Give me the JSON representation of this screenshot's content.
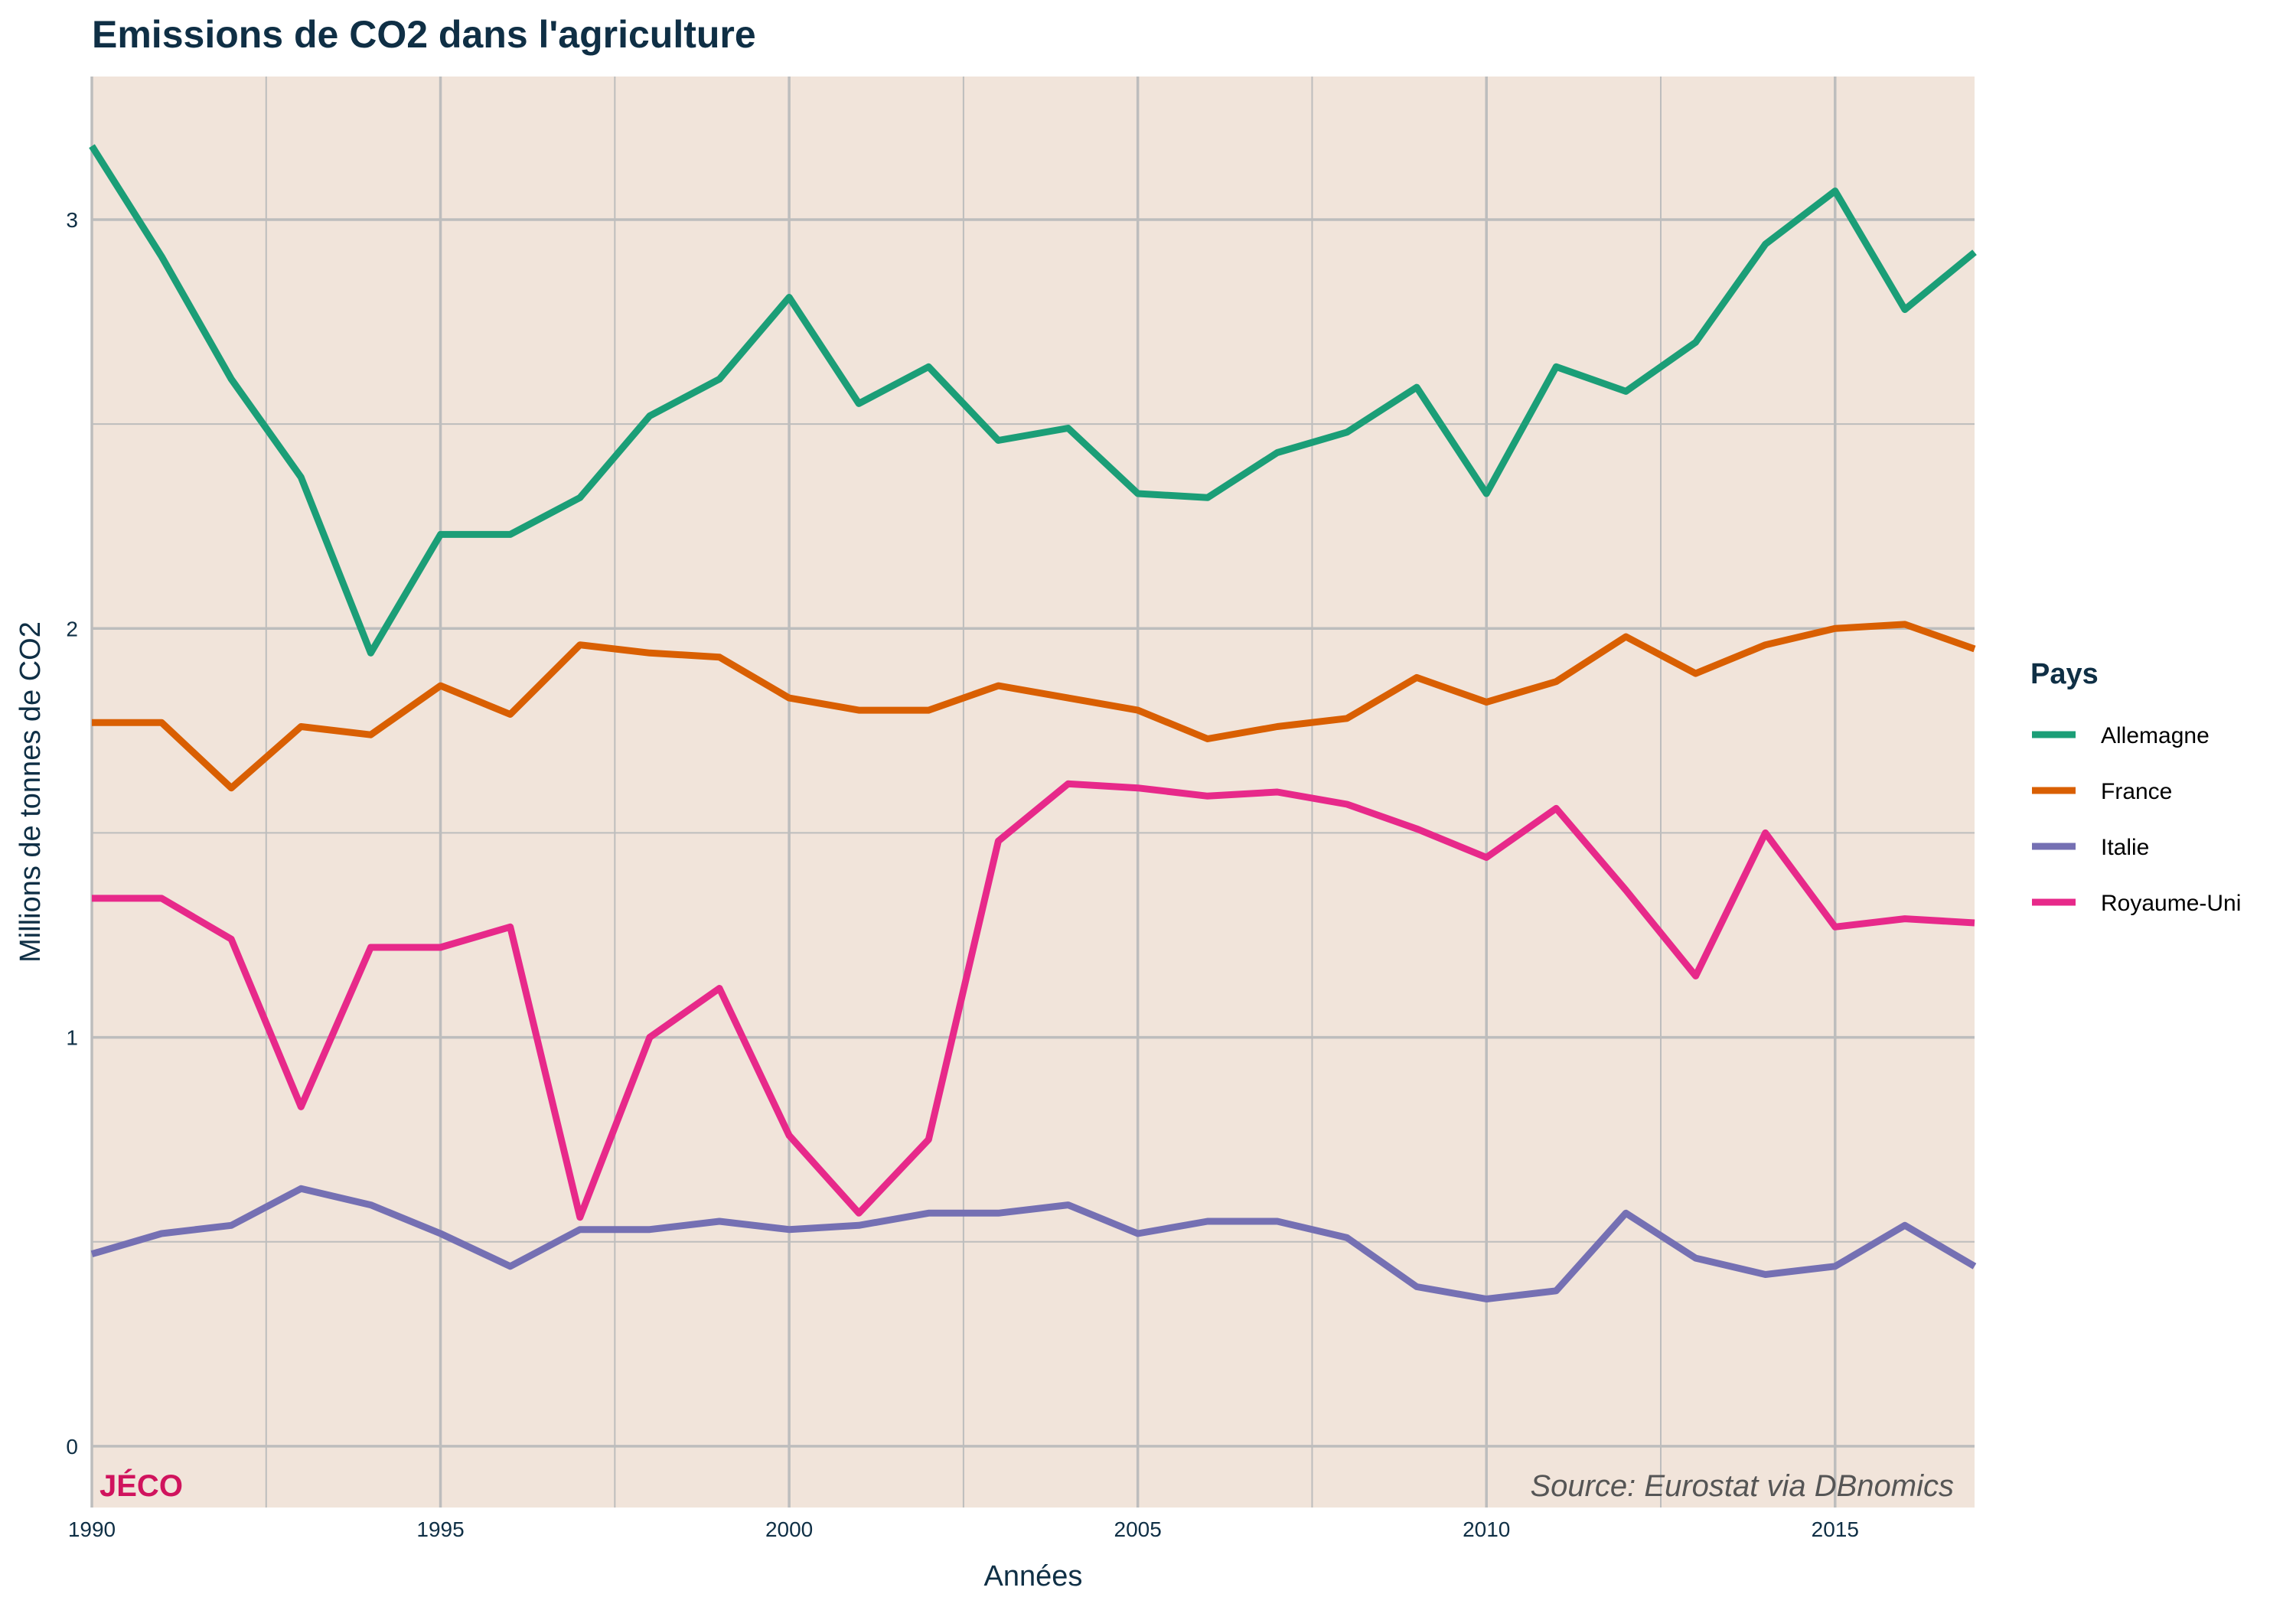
{
  "colors": {
    "panel_background": "#f1e4da",
    "grid": "#bdbdbd",
    "brand": "#d0135d",
    "text": "#0f2f45"
  },
  "chart_data": {
    "type": "line",
    "title": "Emissions de CO2 dans l'agriculture",
    "xlabel": "Années",
    "ylabel": "Millions de tonnes de CO2",
    "xlim": [
      1990,
      2017
    ],
    "ylim": [
      -0.15,
      3.35
    ],
    "x_ticks": [
      1990,
      1995,
      2000,
      2005,
      2010,
      2015
    ],
    "y_ticks": [
      0,
      1,
      2,
      3
    ],
    "grid": true,
    "legend_title": "Pays",
    "legend_position": "right",
    "x": [
      1990,
      1991,
      1992,
      1993,
      1994,
      1995,
      1996,
      1997,
      1998,
      1999,
      2000,
      2001,
      2002,
      2003,
      2004,
      2005,
      2006,
      2007,
      2008,
      2009,
      2010,
      2011,
      2012,
      2013,
      2014,
      2015,
      2016,
      2017
    ],
    "series": [
      {
        "name": "Allemagne",
        "color": "#1b9e77",
        "values": [
          3.18,
          2.91,
          2.61,
          2.37,
          1.94,
          2.23,
          2.23,
          2.32,
          2.52,
          2.61,
          2.81,
          2.55,
          2.64,
          2.46,
          2.49,
          2.33,
          2.32,
          2.43,
          2.48,
          2.59,
          2.33,
          2.64,
          2.58,
          2.7,
          2.94,
          3.07,
          2.78,
          2.92
        ]
      },
      {
        "name": "France",
        "color": "#d95f02",
        "values": [
          1.77,
          1.77,
          1.61,
          1.76,
          1.74,
          1.86,
          1.79,
          1.96,
          1.94,
          1.93,
          1.83,
          1.8,
          1.8,
          1.86,
          1.83,
          1.8,
          1.73,
          1.76,
          1.78,
          1.88,
          1.82,
          1.87,
          1.98,
          1.89,
          1.96,
          2.0,
          2.01,
          1.95
        ]
      },
      {
        "name": "Italie",
        "color": "#7570b3",
        "values": [
          0.47,
          0.52,
          0.54,
          0.63,
          0.59,
          0.52,
          0.44,
          0.53,
          0.53,
          0.55,
          0.53,
          0.54,
          0.57,
          0.57,
          0.59,
          0.52,
          0.55,
          0.55,
          0.51,
          0.39,
          0.36,
          0.38,
          0.57,
          0.46,
          0.42,
          0.44,
          0.54,
          0.44
        ]
      },
      {
        "name": "Royaume-Uni",
        "color": "#e7298a",
        "values": [
          1.34,
          1.34,
          1.24,
          0.83,
          1.22,
          1.22,
          1.27,
          0.56,
          1.0,
          1.12,
          0.76,
          0.57,
          0.75,
          1.48,
          1.62,
          1.61,
          1.59,
          1.6,
          1.57,
          1.51,
          1.44,
          1.56,
          1.36,
          1.15,
          1.5,
          1.27,
          1.29,
          1.28
        ]
      }
    ],
    "annotations": {
      "brand": "JÉCO",
      "source": "Source: Eurostat via DBnomics"
    }
  }
}
